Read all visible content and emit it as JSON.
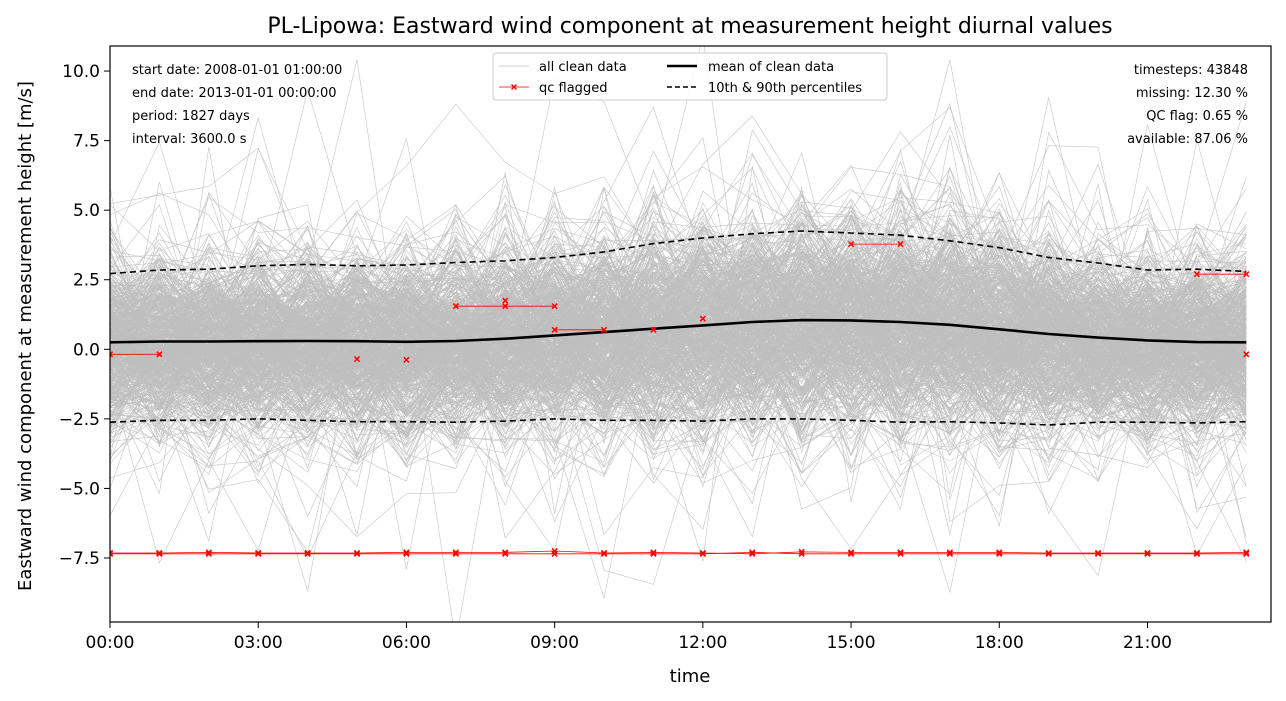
{
  "chart_data": {
    "type": "line",
    "title": "PL-Lipowa: Eastward wind component at measurement height diurnal values",
    "xlabel": "time",
    "ylabel": "Eastward wind component at measurement height [m/s]",
    "xlim": [
      0,
      23.5
    ],
    "ylim": [
      -9.8,
      10.9
    ],
    "x_ticks": [
      0,
      3,
      6,
      9,
      12,
      15,
      18,
      21
    ],
    "x_tick_labels": [
      "00:00",
      "03:00",
      "06:00",
      "09:00",
      "12:00",
      "15:00",
      "18:00",
      "21:00"
    ],
    "y_ticks": [
      -7.5,
      -5.0,
      -2.5,
      0.0,
      2.5,
      5.0,
      7.5,
      10.0
    ],
    "y_tick_labels": [
      "−7.5",
      "−5.0",
      "−2.5",
      "0.0",
      "2.5",
      "5.0",
      "7.5",
      "10.0"
    ],
    "hours": [
      0,
      1,
      2,
      3,
      4,
      5,
      6,
      7,
      8,
      9,
      10,
      11,
      12,
      13,
      14,
      15,
      16,
      17,
      18,
      19,
      20,
      21,
      22,
      23
    ],
    "series": [
      {
        "name": "mean of clean data",
        "color": "#000000",
        "values": [
          0.25,
          0.28,
          0.28,
          0.29,
          0.3,
          0.29,
          0.27,
          0.3,
          0.38,
          0.5,
          0.62,
          0.74,
          0.86,
          0.98,
          1.05,
          1.04,
          0.98,
          0.88,
          0.72,
          0.55,
          0.42,
          0.32,
          0.26,
          0.25
        ]
      },
      {
        "name": "10th & 90th percentiles",
        "color": "#000000",
        "p90": [
          2.72,
          2.85,
          2.88,
          3.0,
          3.05,
          3.0,
          3.03,
          3.12,
          3.18,
          3.3,
          3.5,
          3.8,
          4.0,
          4.15,
          4.25,
          4.18,
          4.1,
          3.9,
          3.65,
          3.3,
          3.1,
          2.85,
          2.88,
          2.8
        ],
        "p10": [
          -2.62,
          -2.55,
          -2.55,
          -2.5,
          -2.55,
          -2.6,
          -2.6,
          -2.62,
          -2.58,
          -2.5,
          -2.55,
          -2.55,
          -2.58,
          -2.5,
          -2.5,
          -2.55,
          -2.62,
          -2.6,
          -2.65,
          -2.72,
          -2.62,
          -2.62,
          -2.65,
          -2.6
        ]
      },
      {
        "name": "all clean data",
        "color": "#bfbfbf"
      },
      {
        "name": "qc flagged",
        "color": "#ff0000",
        "segments": [
          [
            [
              0,
              -0.18
            ],
            [
              1,
              -0.18
            ]
          ],
          [
            [
              5,
              -0.35
            ]
          ],
          [
            [
              6,
              -0.38
            ]
          ],
          [
            [
              7,
              1.55
            ],
            [
              8,
              1.55
            ],
            [
              9,
              1.55
            ]
          ],
          [
            [
              8,
              1.75
            ]
          ],
          [
            [
              9,
              0.7
            ],
            [
              10,
              0.7
            ]
          ],
          [
            [
              11,
              0.7
            ]
          ],
          [
            [
              12,
              1.1
            ]
          ],
          [
            [
              15,
              3.78
            ],
            [
              16,
              3.78
            ]
          ],
          [
            [
              22,
              2.7
            ],
            [
              23,
              2.7
            ]
          ],
          [
            [
              23,
              -0.18
            ]
          ],
          [
            [
              0,
              -7.32
            ],
            [
              1,
              -7.32
            ],
            [
              2,
              -7.3
            ],
            [
              3,
              -7.32
            ],
            [
              4,
              -7.32
            ],
            [
              5,
              -7.32
            ],
            [
              6,
              -7.3
            ],
            [
              7,
              -7.3
            ],
            [
              8,
              -7.3
            ],
            [
              9,
              -7.25
            ],
            [
              10,
              -7.32
            ],
            [
              11,
              -7.3
            ],
            [
              12,
              -7.32
            ],
            [
              13,
              -7.35
            ],
            [
              14,
              -7.28
            ],
            [
              15,
              -7.3
            ],
            [
              16,
              -7.3
            ],
            [
              17,
              -7.3
            ],
            [
              18,
              -7.3
            ],
            [
              19,
              -7.32
            ],
            [
              20,
              -7.32
            ],
            [
              21,
              -7.32
            ],
            [
              22,
              -7.32
            ],
            [
              23,
              -7.3
            ]
          ],
          [
            [
              0,
              -7.35
            ],
            [
              1,
              -7.35
            ],
            [
              2,
              -7.35
            ],
            [
              3,
              -7.35
            ],
            [
              4,
              -7.35
            ],
            [
              5,
              -7.35
            ],
            [
              6,
              -7.35
            ],
            [
              7,
              -7.35
            ],
            [
              8,
              -7.35
            ],
            [
              9,
              -7.35
            ],
            [
              10,
              -7.35
            ],
            [
              11,
              -7.35
            ],
            [
              12,
              -7.35
            ],
            [
              13,
              -7.3
            ],
            [
              14,
              -7.35
            ],
            [
              15,
              -7.35
            ],
            [
              16,
              -7.35
            ],
            [
              17,
              -7.35
            ],
            [
              18,
              -7.35
            ],
            [
              19,
              -7.35
            ],
            [
              20,
              -7.35
            ],
            [
              21,
              -7.35
            ],
            [
              22,
              -7.35
            ],
            [
              23,
              -7.35
            ]
          ]
        ]
      }
    ],
    "legend": {
      "placement": "top-center",
      "entries": [
        {
          "label": "all clean data",
          "style": "thin-gray-line"
        },
        {
          "label": "qc flagged",
          "style": "red-line-x"
        },
        {
          "label": "mean of clean data",
          "style": "thick-black-line"
        },
        {
          "label": "10th & 90th percentiles",
          "style": "black-dashed-line"
        }
      ]
    },
    "info_left": [
      "start date: 2008-01-01 01:00:00",
      "end date: 2013-01-01 00:00:00",
      "period: 1827 days",
      "interval: 3600.0 s"
    ],
    "info_right": [
      "timesteps: 43848",
      "missing: 12.30 %",
      "QC flag: 0.65 %",
      "available: 87.06 %"
    ],
    "grid": false
  }
}
